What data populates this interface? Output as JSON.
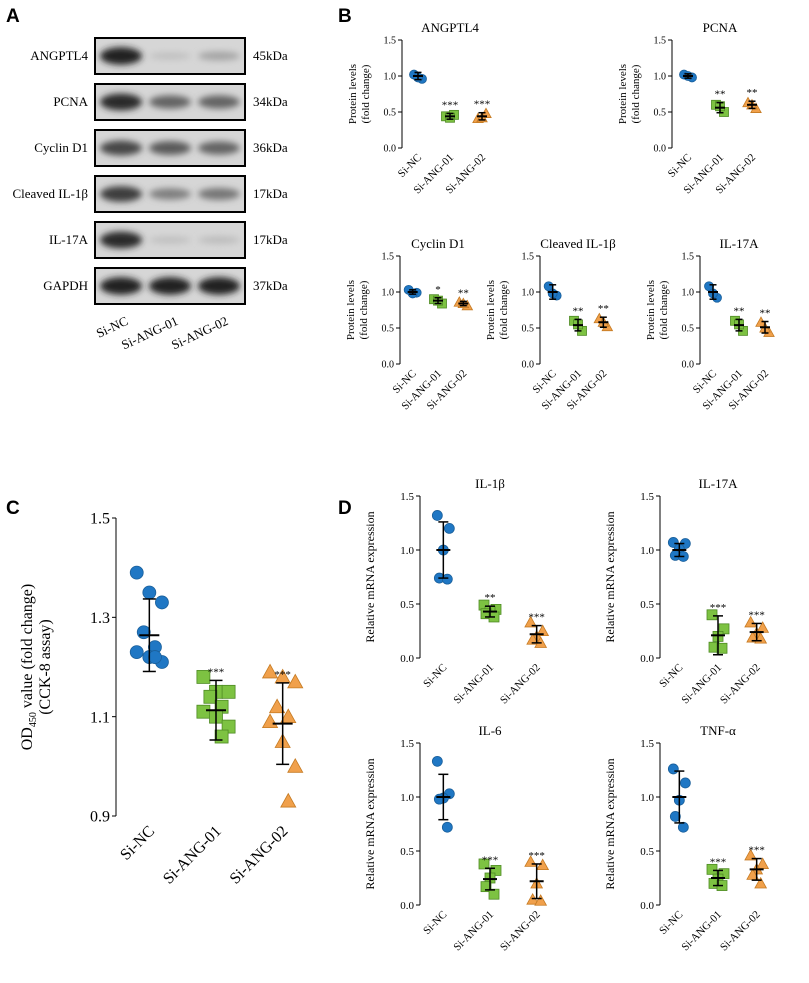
{
  "panels": {
    "a": "A",
    "b": "B",
    "c": "C",
    "d": "D"
  },
  "western_blot": {
    "rows": [
      {
        "protein": "ANGPTL4",
        "kda": "45kDa",
        "intensity": [
          0.95,
          0.1,
          0.25
        ]
      },
      {
        "protein": "PCNA",
        "kda": "34kDa",
        "intensity": [
          0.9,
          0.6,
          0.6
        ]
      },
      {
        "protein": "Cyclin D1",
        "kda": "36kDa",
        "intensity": [
          0.75,
          0.65,
          0.6
        ]
      },
      {
        "protein": "Cleaved IL-1β",
        "kda": "17kDa",
        "intensity": [
          0.8,
          0.45,
          0.5
        ]
      },
      {
        "protein": "IL-17A",
        "kda": "17kDa",
        "intensity": [
          0.9,
          0.1,
          0.12
        ]
      },
      {
        "protein": "GAPDH",
        "kda": "37kDa",
        "intensity": [
          0.95,
          0.95,
          0.95
        ]
      }
    ],
    "lanes": [
      "Si-NC",
      "Si-ANG-01",
      "Si-ANG-02"
    ]
  },
  "chart_data": [
    {
      "id": "b-angptl4",
      "type": "scatter",
      "title": "ANGPTL4",
      "ylabel": "Protein levels (fold change)",
      "ylim": [
        0,
        1.5
      ],
      "yticks": [
        0,
        0.5,
        1.0,
        1.5
      ],
      "categories": [
        "Si-NC",
        "Si-ANG-01",
        "Si-ANG-02"
      ],
      "groups": [
        {
          "points": [
            1.02,
            0.96,
            0.98
          ],
          "mean": 1.0,
          "sd": 0.05,
          "sig": ""
        },
        {
          "points": [
            0.44,
            0.46,
            0.42
          ],
          "mean": 0.44,
          "sd": 0.04,
          "sig": "***"
        },
        {
          "points": [
            0.41,
            0.48,
            0.42
          ],
          "mean": 0.44,
          "sd": 0.05,
          "sig": "***"
        }
      ]
    },
    {
      "id": "b-pcna",
      "type": "scatter",
      "title": "PCNA",
      "ylabel": "Protein levels (fold change)",
      "ylim": [
        0,
        1.5
      ],
      "yticks": [
        0,
        0.5,
        1.0,
        1.5
      ],
      "categories": [
        "Si-NC",
        "Si-ANG-01",
        "Si-ANG-02"
      ],
      "groups": [
        {
          "points": [
            1.02,
            0.98,
            1.0
          ],
          "mean": 1.0,
          "sd": 0.03,
          "sig": ""
        },
        {
          "points": [
            0.6,
            0.5,
            0.58
          ],
          "mean": 0.56,
          "sd": 0.07,
          "sig": "**"
        },
        {
          "points": [
            0.63,
            0.55,
            0.6
          ],
          "mean": 0.6,
          "sd": 0.05,
          "sig": "**"
        }
      ]
    },
    {
      "id": "b-cyclind1",
      "type": "scatter",
      "title": "Cyclin D1",
      "ylabel": "Protein levels (fold change)",
      "ylim": [
        0,
        1.5
      ],
      "yticks": [
        0,
        0.5,
        1.0,
        1.5
      ],
      "categories": [
        "Si-NC",
        "Si-ANG-01",
        "Si-ANG-02"
      ],
      "groups": [
        {
          "points": [
            1.03,
            0.99,
            0.98
          ],
          "mean": 1.0,
          "sd": 0.03,
          "sig": ""
        },
        {
          "points": [
            0.9,
            0.84,
            0.88
          ],
          "mean": 0.88,
          "sd": 0.04,
          "sig": "*"
        },
        {
          "points": [
            0.86,
            0.81,
            0.84
          ],
          "mean": 0.84,
          "sd": 0.03,
          "sig": "**"
        }
      ]
    },
    {
      "id": "b-il1b",
      "type": "scatter",
      "title": "Cleaved IL-1β",
      "ylabel": "Protein levels (fold change)",
      "ylim": [
        0,
        1.5
      ],
      "yticks": [
        0,
        0.5,
        1.0,
        1.5
      ],
      "categories": [
        "Si-NC",
        "Si-ANG-01",
        "Si-ANG-02"
      ],
      "groups": [
        {
          "points": [
            1.08,
            0.95,
            0.98
          ],
          "mean": 1.0,
          "sd": 0.1,
          "sig": ""
        },
        {
          "points": [
            0.6,
            0.46,
            0.55
          ],
          "mean": 0.54,
          "sd": 0.08,
          "sig": "**"
        },
        {
          "points": [
            0.63,
            0.52,
            0.58
          ],
          "mean": 0.58,
          "sd": 0.07,
          "sig": "**"
        }
      ]
    },
    {
      "id": "b-il17a",
      "type": "scatter",
      "title": "IL-17A",
      "ylabel": "Protein levels (fold change)",
      "ylim": [
        0,
        1.5
      ],
      "yticks": [
        0,
        0.5,
        1.0,
        1.5
      ],
      "categories": [
        "Si-NC",
        "Si-ANG-01",
        "Si-ANG-02"
      ],
      "groups": [
        {
          "points": [
            1.08,
            0.92,
            0.98
          ],
          "mean": 1.0,
          "sd": 0.1,
          "sig": ""
        },
        {
          "points": [
            0.6,
            0.46,
            0.55
          ],
          "mean": 0.54,
          "sd": 0.08,
          "sig": "**"
        },
        {
          "points": [
            0.58,
            0.44,
            0.5
          ],
          "mean": 0.51,
          "sd": 0.08,
          "sig": "**"
        }
      ]
    },
    {
      "id": "c-cck8",
      "type": "scatter",
      "title": "",
      "ylabel_main": "OD",
      "ylabel_sub": "450",
      "ylabel_rest": " value  (fold change)",
      "ylabel2": "(CCK-8 assay)",
      "ylim": [
        0.9,
        1.5
      ],
      "yticks": [
        0.9,
        1.1,
        1.3,
        1.5
      ],
      "categories": [
        "Si-NC",
        "Si-ANG-01",
        "Si-ANG-02"
      ],
      "groups": [
        {
          "points": [
            1.39,
            1.35,
            1.33,
            1.27,
            1.24,
            1.23,
            1.22,
            1.21,
            1.22
          ],
          "mean": 1.264,
          "sd": 0.073,
          "sig": ""
        },
        {
          "points": [
            1.18,
            1.15,
            1.15,
            1.14,
            1.12,
            1.11,
            1.1,
            1.08,
            1.06
          ],
          "mean": 1.113,
          "sd": 0.06,
          "sig": "***"
        },
        {
          "points": [
            1.19,
            1.18,
            1.17,
            1.12,
            1.1,
            1.09,
            1.05,
            1.0,
            0.93
          ],
          "mean": 1.086,
          "sd": 0.082,
          "sig": "***"
        }
      ]
    },
    {
      "id": "d-il1b",
      "type": "scatter",
      "title": "IL-1β",
      "ylabel": "Relative mRNA expression",
      "ylim": [
        0,
        1.5
      ],
      "yticks": [
        0,
        0.5,
        1.0,
        1.5
      ],
      "categories": [
        "Si-NC",
        "Si-ANG-01",
        "Si-ANG-02"
      ],
      "groups": [
        {
          "points": [
            1.32,
            1.2,
            1.0,
            0.74,
            0.73
          ],
          "mean": 1.0,
          "sd": 0.26,
          "sig": ""
        },
        {
          "points": [
            0.49,
            0.45,
            0.43,
            0.41,
            0.38
          ],
          "mean": 0.43,
          "sd": 0.05,
          "sig": "**"
        },
        {
          "points": [
            0.33,
            0.25,
            0.2,
            0.17,
            0.14
          ],
          "mean": 0.22,
          "sd": 0.08,
          "sig": "***"
        }
      ]
    },
    {
      "id": "d-il17a",
      "type": "scatter",
      "title": "IL-17A",
      "ylabel": "Relative mRNA expression",
      "ylim": [
        0,
        1.5
      ],
      "yticks": [
        0,
        0.5,
        1.0,
        1.5
      ],
      "categories": [
        "Si-NC",
        "Si-ANG-01",
        "Si-ANG-02"
      ],
      "groups": [
        {
          "points": [
            1.07,
            1.06,
            1.01,
            0.95,
            0.94
          ],
          "mean": 1.0,
          "sd": 0.06,
          "sig": ""
        },
        {
          "points": [
            0.4,
            0.27,
            0.2,
            0.1,
            0.09
          ],
          "mean": 0.21,
          "sd": 0.18,
          "sig": "***"
        },
        {
          "points": [
            0.33,
            0.28,
            0.23,
            0.19,
            0.18
          ],
          "mean": 0.24,
          "sd": 0.08,
          "sig": "***"
        }
      ]
    },
    {
      "id": "d-il6",
      "type": "scatter",
      "title": "IL-6",
      "ylabel": "Relative mRNA expression",
      "ylim": [
        0,
        1.5
      ],
      "yticks": [
        0,
        0.5,
        1.0,
        1.5
      ],
      "categories": [
        "Si-NC",
        "Si-ANG-01",
        "Si-ANG-02"
      ],
      "groups": [
        {
          "points": [
            1.33,
            1.03,
            0.99,
            0.98,
            0.72
          ],
          "mean": 1.0,
          "sd": 0.21,
          "sig": ""
        },
        {
          "points": [
            0.38,
            0.32,
            0.25,
            0.17,
            0.1
          ],
          "mean": 0.24,
          "sd": 0.1,
          "sig": "***"
        },
        {
          "points": [
            0.4,
            0.37,
            0.2,
            0.05,
            0.04
          ],
          "mean": 0.22,
          "sd": 0.16,
          "sig": "***"
        }
      ]
    },
    {
      "id": "d-tnfa",
      "type": "scatter",
      "title": "TNF-α",
      "ylabel": "Relative mRNA expression",
      "ylim": [
        0,
        1.5
      ],
      "yticks": [
        0,
        0.5,
        1.0,
        1.5
      ],
      "categories": [
        "Si-NC",
        "Si-ANG-01",
        "Si-ANG-02"
      ],
      "groups": [
        {
          "points": [
            1.26,
            1.13,
            0.97,
            0.82,
            0.72
          ],
          "mean": 1.0,
          "sd": 0.24,
          "sig": ""
        },
        {
          "points": [
            0.33,
            0.29,
            0.24,
            0.2,
            0.18
          ],
          "mean": 0.25,
          "sd": 0.07,
          "sig": "***"
        },
        {
          "points": [
            0.46,
            0.38,
            0.33,
            0.28,
            0.2
          ],
          "mean": 0.33,
          "sd": 0.1,
          "sig": "***"
        }
      ]
    }
  ],
  "colors": {
    "group1": "#1f77c4",
    "group1_stroke": "#1a5f9a",
    "group2": "#7dc242",
    "group2_stroke": "#4e8a23",
    "group3": "#f0a04b",
    "group3_stroke": "#c57a22",
    "axis": "#000000"
  }
}
